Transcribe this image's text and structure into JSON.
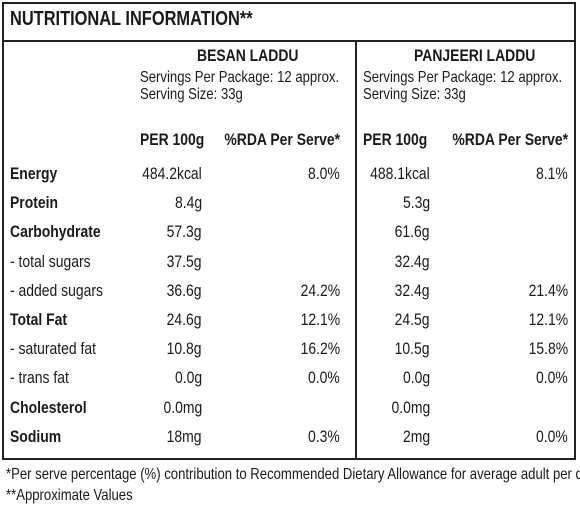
{
  "title": "NUTRITIONAL INFORMATION**",
  "products": [
    {
      "name": "BESAN LADDU",
      "servings_per_package": "Servings Per Package: 12 approx.",
      "serving_size": "Serving Size: 33g",
      "col_per100": "PER 100g",
      "col_rda": "%RDA Per Serve*"
    },
    {
      "name": "PANJEERI LADDU",
      "servings_per_package": "Servings Per Package: 12 approx.",
      "serving_size": "Serving Size: 33g",
      "col_per100": "PER 100g",
      "col_rda": "%RDA Per Serve*"
    }
  ],
  "rows": [
    {
      "label": "Energy",
      "bold": true,
      "b100": "484.2kcal",
      "brda": "8.0%",
      "p100": "488.1kcal",
      "prda": "8.1%"
    },
    {
      "label": "Protein",
      "bold": true,
      "b100": "8.4g",
      "brda": "",
      "p100": "5.3g",
      "prda": ""
    },
    {
      "label": "Carbohydrate",
      "bold": true,
      "b100": "57.3g",
      "brda": "",
      "p100": "61.6g",
      "prda": ""
    },
    {
      "label": " - total sugars",
      "bold": false,
      "b100": "37.5g",
      "brda": "",
      "p100": "32.4g",
      "prda": ""
    },
    {
      "label": " - added sugars",
      "bold": false,
      "b100": "36.6g",
      "brda": "24.2%",
      "p100": "32.4g",
      "prda": "21.4%"
    },
    {
      "label": "Total Fat",
      "bold": true,
      "b100": "24.6g",
      "brda": "12.1%",
      "p100": "24.5g",
      "prda": "12.1%"
    },
    {
      "label": " - saturated fat",
      "bold": false,
      "b100": "10.8g",
      "brda": "16.2%",
      "p100": "10.5g",
      "prda": "15.8%"
    },
    {
      "label": " - trans fat",
      "bold": false,
      "b100": "0.0g",
      "brda": "0.0%",
      "p100": "0.0g",
      "prda": "0.0%"
    },
    {
      "label": "Cholesterol",
      "bold": true,
      "b100": "0.0mg",
      "brda": "",
      "p100": "0.0mg",
      "prda": ""
    },
    {
      "label": "Sodium",
      "bold": true,
      "b100": "18mg",
      "brda": "0.3%",
      "p100": "2mg",
      "prda": "0.0%"
    }
  ],
  "footnotes": [
    "*Per serve percentage (%) contribution to Recommended Dietary Allowance for average adult per day.",
    "**Approximate Values"
  ]
}
